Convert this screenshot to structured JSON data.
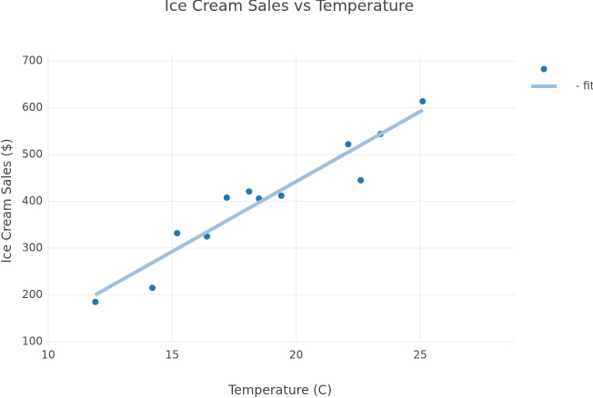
{
  "chart_data": {
    "type": "scatter",
    "title": "Ice Cream Sales vs Temperature",
    "xlabel": "Temperature (C)",
    "ylabel": "Ice Cream Sales ($)",
    "series": [
      {
        "mode": "markers",
        "color": "#1f77b4",
        "x": [
          11.9,
          14.2,
          15.2,
          16.4,
          17.2,
          18.1,
          18.5,
          19.4,
          22.1,
          22.6,
          23.4,
          25.1
        ],
        "values": [
          185,
          215,
          332,
          325,
          408,
          421,
          406,
          412,
          522,
          445,
          544,
          614
        ]
      },
      {
        "name": "- fit",
        "mode": "lines",
        "color": "#9ec0dc",
        "x": [
          11.9,
          25.1
        ],
        "values": [
          200,
          595
        ]
      }
    ],
    "xlim": [
      10,
      28.85
    ],
    "xticks": [
      10,
      15,
      20,
      25
    ],
    "ylim": [
      100,
      712
    ],
    "yticks": [
      100,
      200,
      300,
      400,
      500,
      600,
      700
    ],
    "grid": true,
    "legend": "right"
  }
}
